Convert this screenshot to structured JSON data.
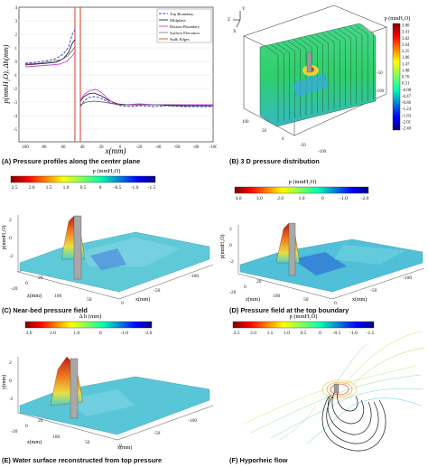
{
  "panels": {
    "a": {
      "caption": "(A) Pressure profiles along the center plane",
      "ylabel": "p(mmH₂O), Δh(mm)",
      "xlabel": "x(mm)",
      "legend": [
        "Top Boundary",
        "Midplane",
        "Bottom Boundary",
        "Surface Elevation",
        "Stalk Edges"
      ]
    },
    "b": {
      "caption": "(B) 3 D pressure distribution",
      "colorbar_title": "p (mmH₂O)",
      "colorbar_ticks": [
        "3.80",
        "3.41",
        "3.02",
        "2.64",
        "2.25",
        "1.86",
        "1.47",
        "1.08",
        "0.70",
        "0.31",
        "-0.08",
        "-0.47",
        "-0.86",
        "-1.24",
        "-1.63",
        "-2.01",
        "-2.40"
      ],
      "axis_labels": [
        "-50",
        "-100",
        "100",
        "50",
        "0",
        "-50",
        "-100"
      ],
      "triad": [
        "Y",
        "Z",
        "X"
      ]
    },
    "c": {
      "caption": "(C) Near-bed pressure field",
      "colorbar_title": "p (mmH₂O)",
      "colorbar_ticks": [
        "2.5",
        "2.0",
        "1.5",
        "1.0",
        "0.5",
        "0",
        "-0.5",
        "-1.0",
        "-1.5"
      ],
      "zlabel": "p(mmH₂O)",
      "xlabel": "x(mm)",
      "ylabel": "z(mm)",
      "ticks_z": [
        "20",
        "0",
        "-20"
      ],
      "ticks_x": [
        "100",
        "50",
        "0",
        "-50",
        "-100"
      ]
    },
    "d": {
      "caption": "(D) Pressure field at the top boundary",
      "colorbar_title": "p (mmH₂O)",
      "colorbar_ticks": [
        "4.0",
        "3.0",
        "2.0",
        "1.0",
        "0",
        "-1.0",
        "-2.0"
      ],
      "zlabel": "p(mmH₂O)",
      "xlabel": "x(mm)",
      "ylabel": "z(mm)",
      "ticks_z": [
        "20",
        "0",
        "-20"
      ],
      "ticks_x": [
        "100",
        "50",
        "0",
        "-50",
        "-100"
      ]
    },
    "e": {
      "caption": "(E) Water surface reconstructed from top pressure",
      "colorbar_title": "Δ h (mm)",
      "colorbar_ticks": [
        "3.0",
        "2.0",
        "1.0",
        "0",
        "-1.0",
        "-2.0"
      ],
      "zlabel": "y(mm)",
      "xlabel": "x(mm)",
      "ylabel": "z(mm)",
      "ticks_z": [
        "20",
        "0",
        "-20"
      ],
      "ticks_x": [
        "100",
        "50",
        "0",
        "-50",
        "-100"
      ]
    },
    "f": {
      "caption": "(F) Hyporheic flow",
      "colorbar_title": "p (mmH₂O)",
      "colorbar_ticks": [
        "2.5",
        "2.0",
        "1.5",
        "1.0",
        "0.5",
        "0",
        "-0.5",
        "-1.0",
        "-1.5"
      ]
    }
  },
  "colors": {
    "top_boundary": "#3a3ad8",
    "midplane": "#111111",
    "bottom_boundary": "#d640d6",
    "surface_elevation": "#444444",
    "stalk_edges": "#e05a4a"
  }
}
